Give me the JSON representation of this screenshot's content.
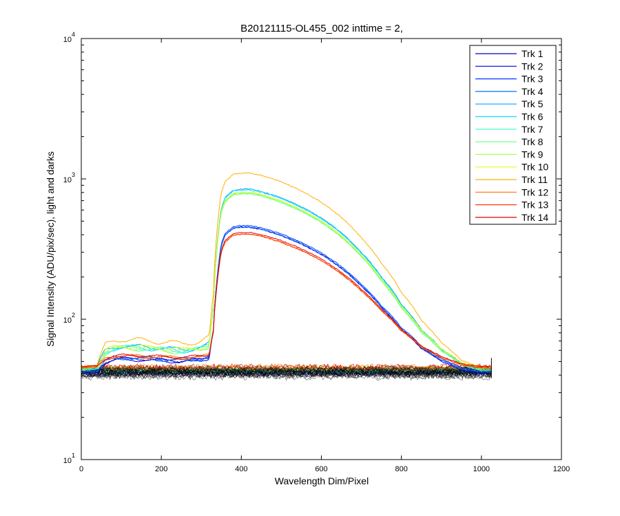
{
  "chart_data": {
    "type": "line",
    "title": "B20121115-OL455_002 inttime = 2,",
    "xlabel": "Wavelength Dim/Pixel",
    "ylabel": "Signal Intensity (ADU/pix/sec), light and darks",
    "xlim": [
      0,
      1200
    ],
    "ylim": [
      10,
      10000
    ],
    "yscale": "log",
    "x_ticks": [
      0,
      200,
      400,
      600,
      800,
      1000,
      1200
    ],
    "y_ticks": [
      {
        "value": 10,
        "base": "10",
        "exp": "1"
      },
      {
        "value": 100,
        "base": "10",
        "exp": "2"
      },
      {
        "value": 1000,
        "base": "10",
        "exp": "3"
      },
      {
        "value": 10000,
        "base": "10",
        "exp": "4"
      }
    ],
    "grid": false,
    "legend_position": "top-right",
    "profile": {
      "x": [
        0,
        20,
        40,
        60,
        80,
        100,
        150,
        200,
        250,
        300,
        320,
        330,
        340,
        350,
        360,
        380,
        400,
        420,
        450,
        500,
        550,
        600,
        650,
        700,
        750,
        800,
        850,
        900,
        950,
        1000,
        1010,
        1025
      ],
      "y": [
        45,
        46,
        47,
        65,
        70,
        72,
        71,
        69,
        67,
        70,
        75,
        150,
        450,
        800,
        960,
        1080,
        1100,
        1100,
        1060,
        950,
        820,
        680,
        530,
        380,
        250,
        155,
        98,
        68,
        51,
        45,
        45,
        45
      ]
    },
    "series": [
      {
        "name": "Trk 1",
        "color": "#0000b0",
        "scale": 0.39,
        "dark": 42
      },
      {
        "name": "Trk 2",
        "color": "#0000d8",
        "scale": 0.39,
        "dark": 41
      },
      {
        "name": "Trk 3",
        "color": "#0038ff",
        "scale": 0.4,
        "dark": 43
      },
      {
        "name": "Trk 4",
        "color": "#0070ff",
        "scale": 0.39,
        "dark": 42
      },
      {
        "name": "Trk 5",
        "color": "#00a8ff",
        "scale": 0.76,
        "dark": 44
      },
      {
        "name": "Trk 6",
        "color": "#00e0ff",
        "scale": 0.75,
        "dark": 43
      },
      {
        "name": "Trk 7",
        "color": "#38ffc8",
        "scale": 0.71,
        "dark": 44
      },
      {
        "name": "Trk 8",
        "color": "#70ff90",
        "scale": 0.7,
        "dark": 43
      },
      {
        "name": "Trk 9",
        "color": "#a8ff58",
        "scale": 0.71,
        "dark": 44
      },
      {
        "name": "Trk 10",
        "color": "#e0ff20",
        "scale": 0.72,
        "dark": 45
      },
      {
        "name": "Trk 11",
        "color": "#ffb000",
        "scale": 1.0,
        "dark": 45
      },
      {
        "name": "Trk 12",
        "color": "#ff7000",
        "scale": 0.34,
        "dark": 46
      },
      {
        "name": "Trk 13",
        "color": "#ff3800",
        "scale": 0.34,
        "dark": 45
      },
      {
        "name": "Trk 14",
        "color": "#e00000",
        "scale": 0.35,
        "dark": 46
      }
    ]
  }
}
